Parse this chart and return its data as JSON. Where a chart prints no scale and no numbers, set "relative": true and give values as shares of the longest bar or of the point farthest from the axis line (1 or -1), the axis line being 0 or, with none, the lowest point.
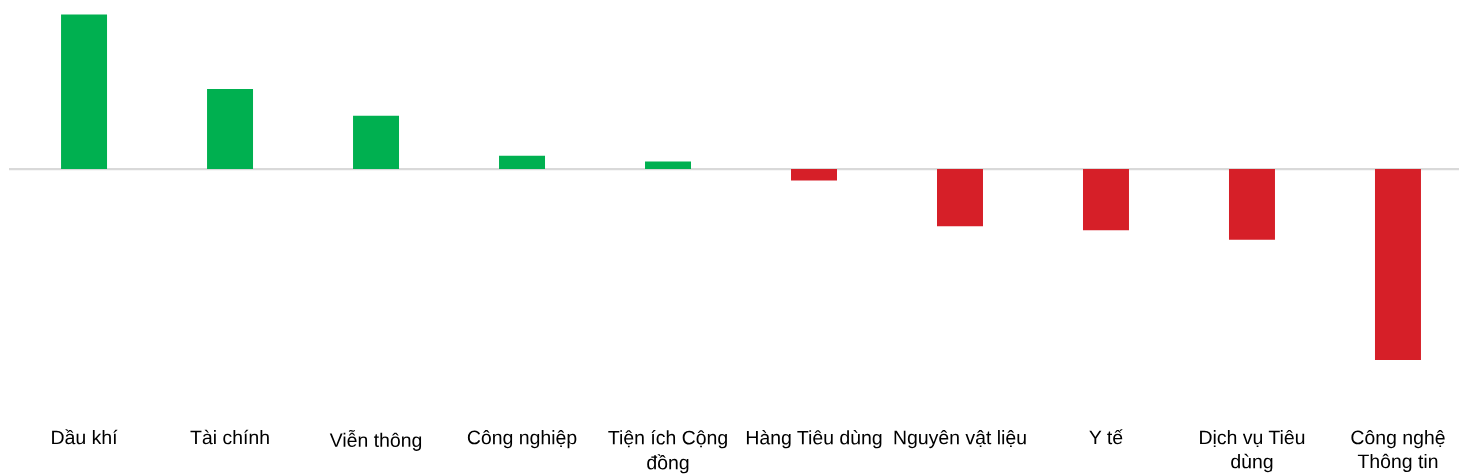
{
  "chart_data": {
    "type": "bar",
    "relative": true,
    "categories": [
      "Dầu khí",
      "Tài chính",
      "Viễn thông",
      "Công nghiệp",
      "Tiện ích Cộng đồng",
      "Hàng Tiêu dùng",
      "Nguyên vật liệu",
      "Y tế",
      "Dịch vụ Tiêu dùng",
      "Công nghệ Thông tin"
    ],
    "values": [
      0.81,
      0.42,
      0.28,
      0.07,
      0.04,
      -0.06,
      -0.3,
      -0.32,
      -0.37,
      -1
    ],
    "colors": [
      "#00b050",
      "#00b050",
      "#00b050",
      "#00b050",
      "#00b050",
      "#d61f28",
      "#d61f28",
      "#d61f28",
      "#d61f28",
      "#d61f28"
    ]
  }
}
